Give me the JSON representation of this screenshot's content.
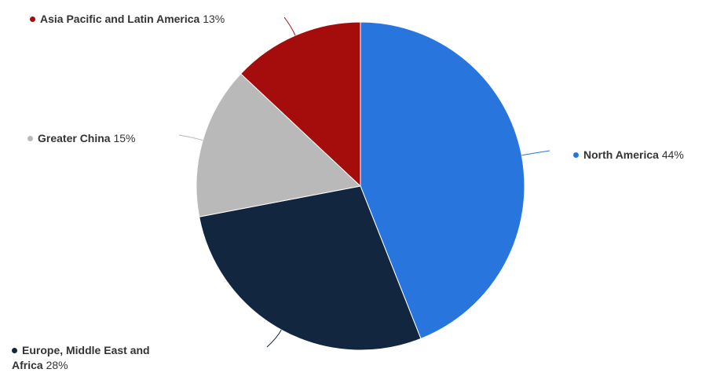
{
  "chart_data": {
    "type": "pie",
    "categories": [
      "North America",
      "Europe, Middle East and Africa",
      "Greater China",
      "Asia Pacific and Latin America"
    ],
    "values": [
      44,
      28,
      15,
      13
    ],
    "value_labels": [
      "44%",
      "28%",
      "15%",
      "13%"
    ],
    "colors": [
      "#2876dd",
      "#12263f",
      "#b9b9b9",
      "#a50d0d"
    ]
  }
}
